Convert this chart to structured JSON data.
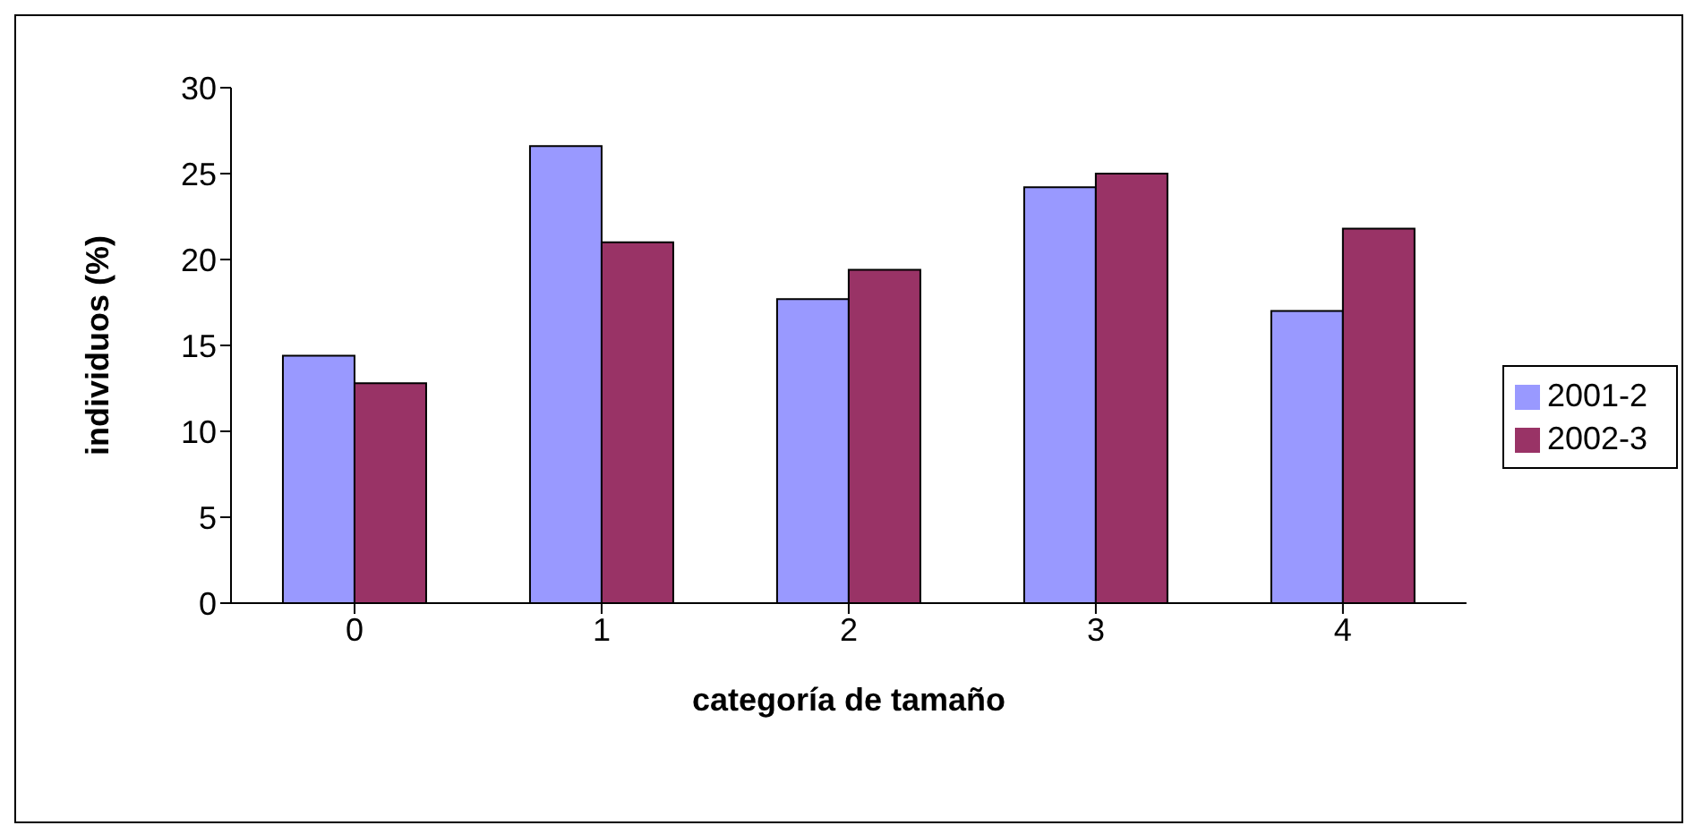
{
  "chart_data": {
    "type": "bar",
    "xlabel": "categoría de tamaño",
    "ylabel": "individuos (%)",
    "categories": [
      "0",
      "1",
      "2",
      "3",
      "4"
    ],
    "series": [
      {
        "name": "2001-2",
        "color": "#9999ff",
        "values": [
          14.4,
          26.6,
          17.7,
          24.2,
          17.0
        ]
      },
      {
        "name": "2002-3",
        "color": "#993366",
        "values": [
          12.8,
          21.0,
          19.4,
          25.0,
          21.8
        ]
      }
    ],
    "ylim": [
      0,
      30
    ],
    "yticks": [
      0,
      5,
      10,
      15,
      20,
      25,
      30
    ],
    "grid": false,
    "legend": "right"
  }
}
